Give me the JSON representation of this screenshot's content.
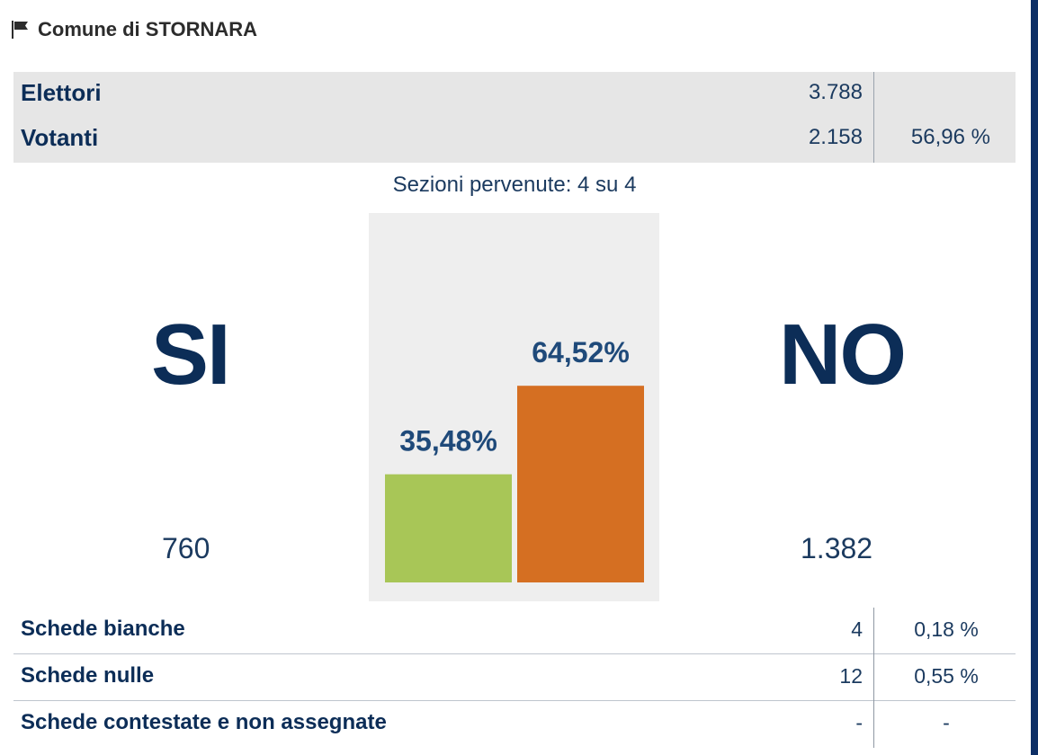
{
  "header": {
    "icon": "flag-icon",
    "title": "Comune di STORNARA"
  },
  "stats": {
    "elettori": {
      "label": "Elettori",
      "value": "3.788"
    },
    "votanti": {
      "label": "Votanti",
      "value": "2.158",
      "percent": "56,96 %"
    }
  },
  "sezioni": "Sezioni pervenute: 4 su 4",
  "results": {
    "si": {
      "label": "SI",
      "count": "760",
      "percent_label": "35,48%"
    },
    "no": {
      "label": "NO",
      "count": "1.382",
      "percent_label": "64,52%"
    }
  },
  "chart_data": {
    "type": "bar",
    "categories": [
      "SI",
      "NO"
    ],
    "values": [
      35.48,
      64.52
    ],
    "data_labels": [
      "35,48%",
      "64,52%"
    ],
    "colors": [
      "#a8c657",
      "#d56f22"
    ],
    "ylim": [
      0,
      100
    ],
    "label_color": "#1f4a7a"
  },
  "schede": [
    {
      "label": "Schede bianche",
      "value": "4",
      "percent": "0,18 %"
    },
    {
      "label": "Schede nulle",
      "value": "12",
      "percent": "0,55 %"
    },
    {
      "label": "Schede contestate e non assegnate",
      "value": "-",
      "percent": "-"
    }
  ],
  "colors": {
    "navy": "#0c2d57",
    "panel_grey": "#e6e6e6",
    "chart_bg": "#eeeeee",
    "si_green": "#a8c657",
    "no_orange": "#d56f22",
    "edge_blue": "#0d2f66"
  }
}
